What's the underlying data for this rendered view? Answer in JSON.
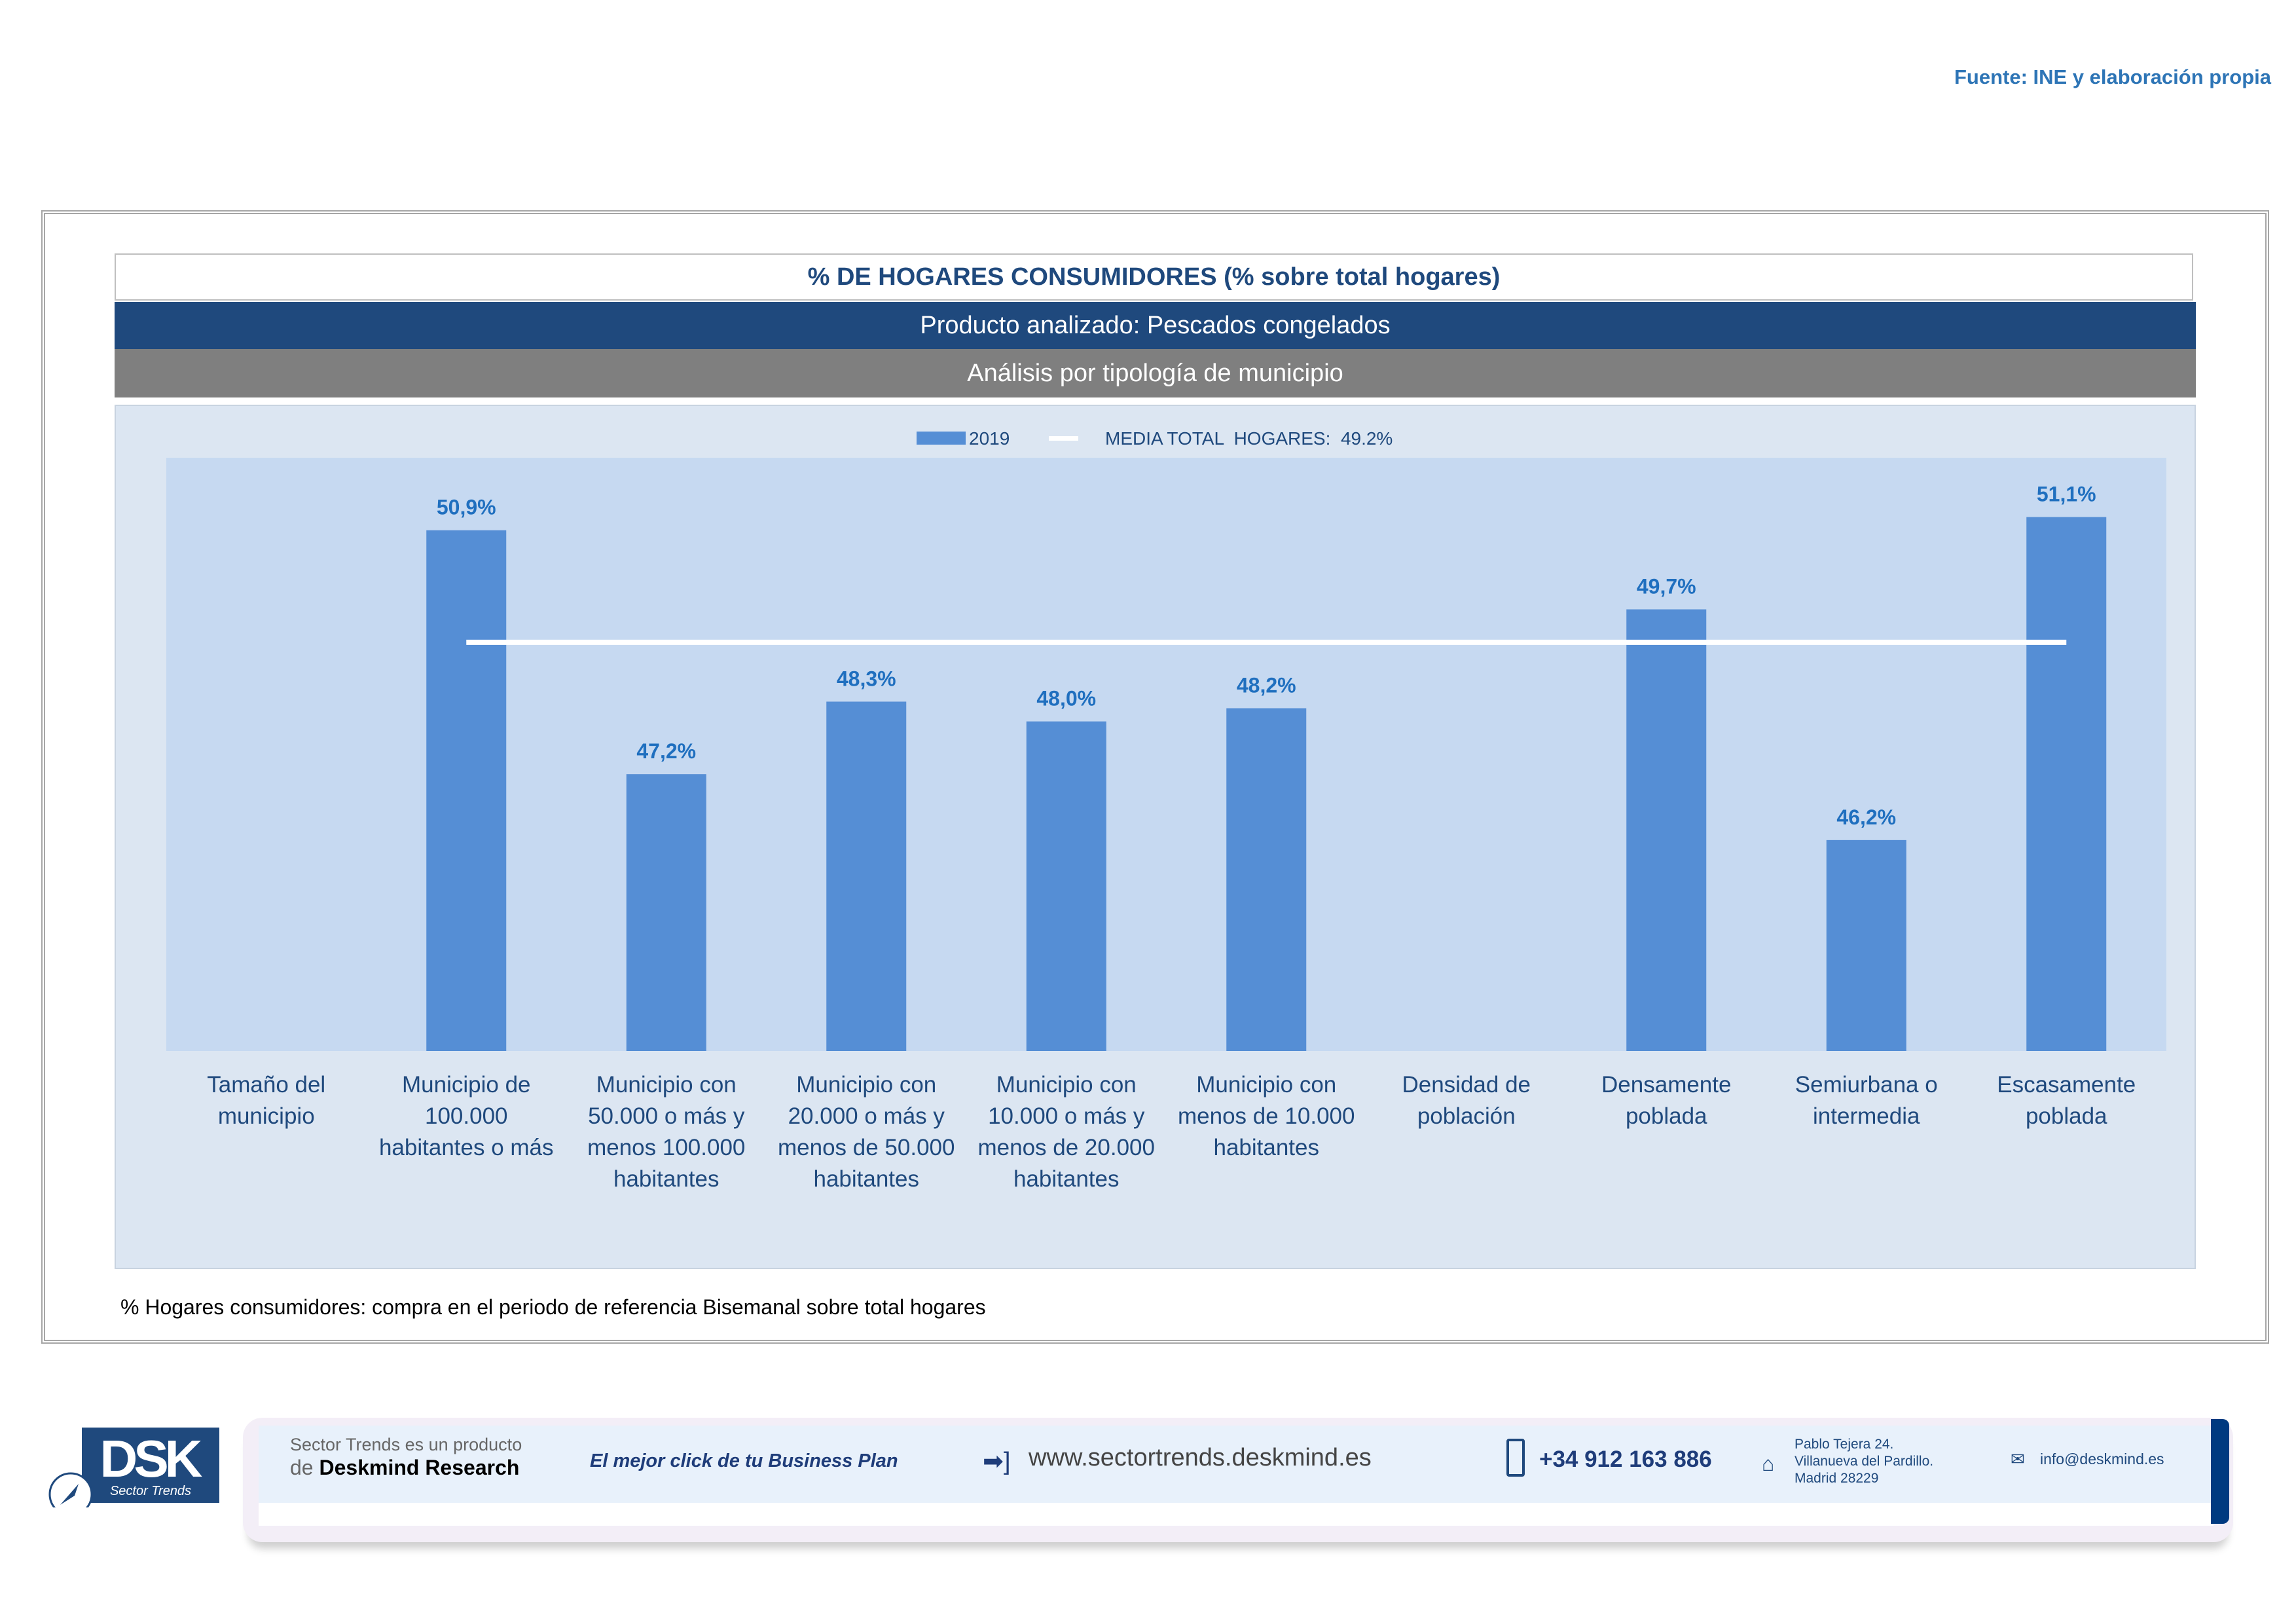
{
  "source": "Fuente: INE y elaboración propia",
  "header": {
    "title": "% DE HOGARES CONSUMIDORES (% sobre total hogares)",
    "product": "Producto analizado: Pescados congelados",
    "analysis": "Análisis por tipología de municipio"
  },
  "chart_data": {
    "type": "bar",
    "categories": [
      [
        "Tamaño del",
        "municipio"
      ],
      [
        "Municipio de",
        "100.000",
        "habitantes o más"
      ],
      [
        "Municipio con",
        "50.000 o más y",
        "menos 100.000",
        "habitantes"
      ],
      [
        "Municipio con",
        "20.000 o más y",
        "menos de 50.000",
        "habitantes"
      ],
      [
        "Municipio con",
        "10.000 o más y",
        "menos de 20.000",
        "habitantes"
      ],
      [
        "Municipio con",
        "menos de 10.000",
        "habitantes"
      ],
      [
        "Densidad de",
        "población"
      ],
      [
        "Densamente",
        "poblada"
      ],
      [
        "Semiurbana o",
        "intermedia"
      ],
      [
        "Escasamente",
        "poblada"
      ]
    ],
    "series": [
      {
        "name": "2019",
        "values": [
          null,
          50.9,
          47.2,
          48.3,
          48.0,
          48.2,
          null,
          49.7,
          46.2,
          51.1
        ],
        "labels": [
          null,
          "50,9%",
          "47,2%",
          "48,3%",
          "48,0%",
          "48,2%",
          null,
          "49,7%",
          "46,2%",
          "51,1%"
        ]
      }
    ],
    "reference_line": {
      "name": "MEDIA TOTAL  HOGARES:  49.2%",
      "value": 49.2
    },
    "ylim": [
      43,
      52
    ],
    "legend": "top-center",
    "grid": false,
    "colors": {
      "bar": "#558ed5",
      "line": "#ffffff",
      "label": "#1f6fbf",
      "plot_bg": "#c6d9f1"
    }
  },
  "footnote": "% Hogares consumidores: compra en el periodo de referencia Bisemanal sobre total hogares",
  "footer": {
    "logo_text": "DSK",
    "logo_sub": "Sector Trends",
    "product_line1": "Sector Trends es un producto",
    "product_line2_prefix": "de",
    "product_line2_brand": "Deskmind Research",
    "slogan": "El mejor click de tu Business Plan",
    "website": "www.sectortrends.deskmind.es",
    "phone": "+34 912 163 886",
    "address": [
      "Pablo Tejera 24.",
      "Villanueva del Pardillo.",
      "Madrid 28229"
    ],
    "email": "info@deskmind.es"
  }
}
